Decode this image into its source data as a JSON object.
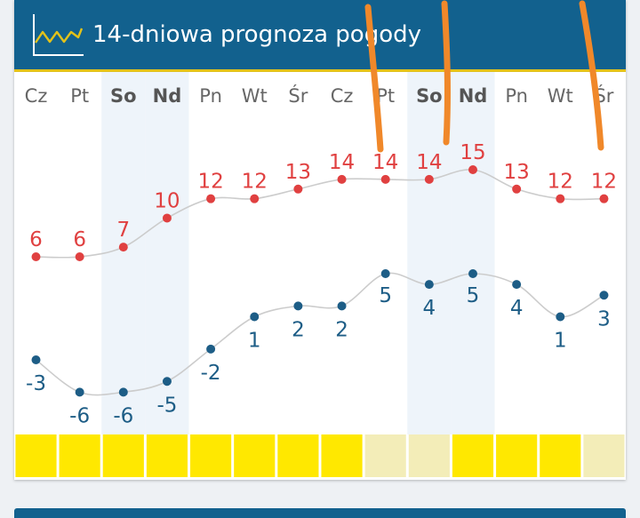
{
  "header": {
    "title": "14-dniowa prognoza pogody",
    "icon": "line-chart-icon"
  },
  "colors": {
    "header_bg": "#12618e",
    "header_accent": "#e3c21a",
    "max_temp": "#e04040",
    "min_temp": "#1d5d86",
    "weekend_bg": "#eef4fa",
    "sun_strong": "#ffe800",
    "sun_weak": "#f3edb8",
    "annotation": "#f0882a"
  },
  "chart_data": {
    "type": "line",
    "categories": [
      "Cz",
      "Pt",
      "So",
      "Nd",
      "Pn",
      "Wt",
      "Śr",
      "Cz",
      "Pt",
      "So",
      "Nd",
      "Pn",
      "Wt",
      "Śr"
    ],
    "weekend_days": [
      "So",
      "Nd"
    ],
    "series": [
      {
        "values": [
          6,
          6,
          7,
          10,
          12,
          12,
          13,
          14,
          14,
          14,
          15,
          13,
          12,
          12
        ]
      },
      {
        "values": [
          -3,
          -6,
          -6,
          -5,
          -2,
          1,
          2,
          2,
          5,
          4,
          5,
          4,
          1,
          3
        ]
      }
    ],
    "sun_strength": [
      "strong",
      "strong",
      "strong",
      "strong",
      "strong",
      "strong",
      "strong",
      "strong",
      "weak",
      "weak",
      "strong",
      "strong",
      "strong",
      "weak"
    ],
    "grid": false
  }
}
